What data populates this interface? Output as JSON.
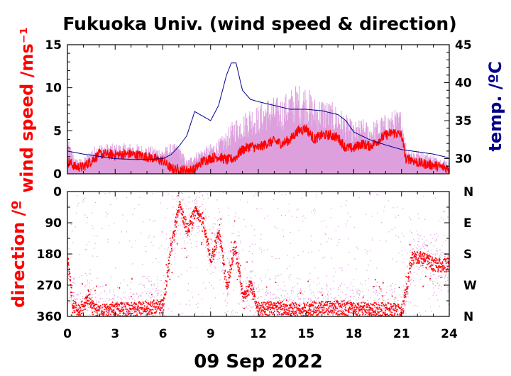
{
  "chart_data": [
    {
      "type": "line",
      "panel": "top",
      "title": "Fukuoka Univ. (wind speed & direction)",
      "xlabel": "09 Sep 2022",
      "ylabel_left": "wind speed /ms⁻¹",
      "ylabel_right": "temp. /ºC",
      "xlim": [
        0,
        24
      ],
      "ylim_left": [
        0,
        15
      ],
      "ylim_right": [
        28,
        45
      ],
      "xticks": [
        "0",
        "3",
        "6",
        "9",
        "12",
        "15",
        "18",
        "21",
        "24"
      ],
      "yticks_left": [
        "0",
        "5",
        "10",
        "15"
      ],
      "yticks_right": [
        "30",
        "35",
        "40",
        "45"
      ],
      "grid": false,
      "colors": {
        "mean_speed": "#ff0000",
        "gust_speed": "#dda0dd",
        "temperature": "#00008b"
      },
      "series": [
        {
          "role": "mean wind speed",
          "x": [
            0,
            0.5,
            1,
            1.5,
            2,
            3,
            4,
            5,
            6,
            6.5,
            7,
            7.5,
            8,
            8.5,
            9,
            9.5,
            10,
            10.5,
            11,
            11.5,
            12,
            12.5,
            13,
            13.5,
            14,
            14.5,
            15,
            15.5,
            16,
            16.5,
            17,
            17.5,
            18,
            18.5,
            19,
            19.5,
            20,
            20.5,
            21,
            21.3,
            21.5,
            22,
            23,
            24
          ],
          "y": [
            1.5,
            0.8,
            0.8,
            1.5,
            2.3,
            2.2,
            2.3,
            2.0,
            1.5,
            0.6,
            0.5,
            0.4,
            0.5,
            1.5,
            1.8,
            2.0,
            1.6,
            1.8,
            2.8,
            3.2,
            3.0,
            3.5,
            3.8,
            3.5,
            4.0,
            5.0,
            5.3,
            4.0,
            4.5,
            4.5,
            4.2,
            3.0,
            3.0,
            3.5,
            3.2,
            3.8,
            4.5,
            4.8,
            4.5,
            1.5,
            1.8,
            1.3,
            1.0,
            0.6
          ]
        },
        {
          "role": "gust wind speed",
          "x": [
            0,
            0.5,
            1,
            1.5,
            2,
            3,
            4,
            5,
            6,
            6.5,
            7,
            7.5,
            8,
            8.5,
            9,
            9.5,
            10,
            10.5,
            11,
            11.5,
            12,
            12.5,
            13,
            13.5,
            14,
            14.5,
            15,
            15.5,
            16,
            16.5,
            17,
            17.5,
            18,
            18.5,
            19,
            19.5,
            20,
            20.5,
            21,
            21.3,
            21.5,
            22,
            23,
            24
          ],
          "y": [
            4.2,
            1.8,
            1.8,
            3.0,
            3.6,
            3.5,
            3.6,
            3.3,
            3.0,
            3.5,
            3.5,
            1.5,
            2.5,
            3.0,
            3.5,
            4.0,
            5.0,
            6.5,
            7.0,
            8.0,
            8.0,
            9.0,
            9.0,
            9.0,
            10.0,
            10.5,
            10.5,
            9.0,
            9.0,
            8.5,
            8.0,
            7.0,
            6.0,
            6.5,
            6.0,
            6.5,
            7.0,
            7.5,
            7.5,
            3.5,
            3.0,
            2.8,
            2.2,
            1.5
          ]
        },
        {
          "role": "temperature",
          "axis": "right",
          "x": [
            0,
            1,
            2,
            3,
            4,
            5,
            6,
            6.5,
            7,
            7.5,
            8,
            8.5,
            9,
            9.5,
            10,
            10.3,
            10.6,
            11,
            11.5,
            12,
            13,
            14,
            15,
            16,
            17,
            17.5,
            18,
            19,
            20,
            21,
            22,
            23,
            24
          ],
          "y": [
            31.0,
            30.6,
            30.3,
            30.0,
            29.9,
            29.9,
            30.0,
            30.5,
            31.6,
            33.0,
            36.2,
            35.6,
            35.0,
            37.0,
            41.0,
            42.6,
            42.6,
            39.0,
            37.8,
            37.5,
            37.0,
            36.5,
            36.5,
            36.3,
            35.8,
            35.0,
            33.5,
            32.5,
            31.8,
            31.2,
            30.9,
            30.6,
            30.1
          ]
        }
      ]
    },
    {
      "type": "scatter",
      "panel": "bottom",
      "ylabel_left": "direction /º",
      "xlim": [
        0,
        24
      ],
      "ylim": [
        0,
        360
      ],
      "y_inverted": true,
      "xticks": [
        "0",
        "3",
        "6",
        "9",
        "12",
        "15",
        "18",
        "21",
        "24"
      ],
      "yticks_left": [
        "0",
        "90",
        "180",
        "270",
        "360"
      ],
      "yticks_right": [
        "N",
        "E",
        "S",
        "W",
        "N"
      ],
      "grid": false,
      "colors": {
        "mean_direction": "#ff0000",
        "instant_direction": "#dda0dd"
      },
      "series": [
        {
          "role": "mean wind direction",
          "x": [
            0,
            0.3,
            0.6,
            1,
            1.3,
            1.6,
            2,
            3,
            4,
            5,
            6,
            6.5,
            7,
            7.5,
            8,
            8.5,
            9,
            9.5,
            10,
            10.5,
            11,
            11.5,
            12,
            13,
            14,
            15,
            16,
            17,
            18,
            19,
            20,
            21,
            21.3,
            21.6,
            22,
            22.5,
            23,
            23.5,
            24
          ],
          "y": [
            200,
            320,
            350,
            330,
            300,
            340,
            345,
            340,
            340,
            335,
            330,
            160,
            40,
            110,
            60,
            80,
            200,
            120,
            280,
            150,
            310,
            270,
            340,
            335,
            340,
            340,
            335,
            335,
            340,
            340,
            340,
            345,
            280,
            190,
            190,
            200,
            210,
            215,
            210
          ]
        }
      ]
    }
  ]
}
